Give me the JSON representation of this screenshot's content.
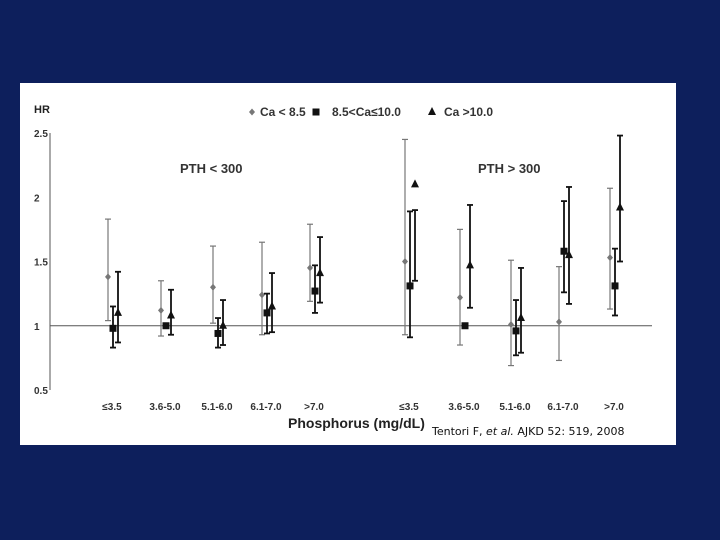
{
  "chart_data": {
    "type": "scatter",
    "ylabel": "HR",
    "xlabel": "Phosphorus (mg/dL)",
    "ylim": [
      0.5,
      2.5
    ],
    "yticks": [
      "0.5",
      "1",
      "1.5",
      "2",
      "2.5"
    ],
    "reference_line": 1,
    "legend": [
      {
        "marker": "diamond",
        "label": "Ca < 8.5"
      },
      {
        "marker": "square",
        "label": "8.5<Ca≤10.0"
      },
      {
        "marker": "triangle",
        "label": "Ca >10.0"
      }
    ],
    "categories": [
      "≤3.5",
      "3.6-5.0",
      "5.1-6.0",
      "6.1-7.0",
      ">7.0",
      "≤3.5",
      "3.6-5.0",
      "5.1-6.0",
      "6.1-7.0",
      ">7.0"
    ],
    "groups": [
      {
        "label": "PTH < 300",
        "start": 0,
        "end": 4
      },
      {
        "label": "PTH > 300",
        "start": 5,
        "end": 9
      }
    ],
    "series": [
      {
        "name": "Ca < 8.5",
        "marker": "diamond",
        "color": "#777777",
        "values": [
          1.38,
          1.12,
          1.3,
          1.24,
          1.45,
          1.5,
          1.22,
          1.01,
          1.03,
          1.53
        ],
        "lower": [
          1.04,
          0.92,
          1.02,
          0.93,
          1.19,
          0.93,
          0.85,
          0.69,
          0.73,
          1.13
        ],
        "upper": [
          1.83,
          1.35,
          1.62,
          1.65,
          1.79,
          2.45,
          1.75,
          1.51,
          1.46,
          2.07
        ]
      },
      {
        "name": "8.5<Ca≤10.0",
        "marker": "square",
        "color": "#111111",
        "values": [
          0.98,
          1.0,
          0.94,
          1.1,
          1.27,
          1.31,
          1.0,
          0.96,
          1.58,
          1.31
        ],
        "lower": [
          0.83,
          0.99,
          0.83,
          0.94,
          1.1,
          0.91,
          0.99,
          0.77,
          1.26,
          1.08
        ],
        "upper": [
          1.15,
          1.01,
          1.06,
          1.25,
          1.47,
          1.89,
          1.01,
          1.2,
          1.97,
          1.6
        ]
      },
      {
        "name": "Ca >10.0",
        "marker": "triangle",
        "color": "#111111",
        "values": [
          1.1,
          1.08,
          1.0,
          1.15,
          1.41,
          2.1,
          1.47,
          1.06,
          1.55,
          1.92
        ],
        "lower": [
          0.87,
          0.93,
          0.85,
          0.95,
          1.18,
          1.35,
          1.14,
          0.79,
          1.17,
          1.5
        ],
        "upper": [
          1.42,
          1.28,
          1.2,
          1.41,
          1.69,
          1.9,
          1.94,
          1.45,
          2.08,
          2.48
        ]
      }
    ]
  },
  "annotations": {
    "pth_low": "PTH < 300",
    "pth_high": "PTH > 300"
  },
  "citation": {
    "author": "Tentori F, ",
    "etal": "et al.",
    "journal": " AJKD 52: 519, 2008"
  }
}
